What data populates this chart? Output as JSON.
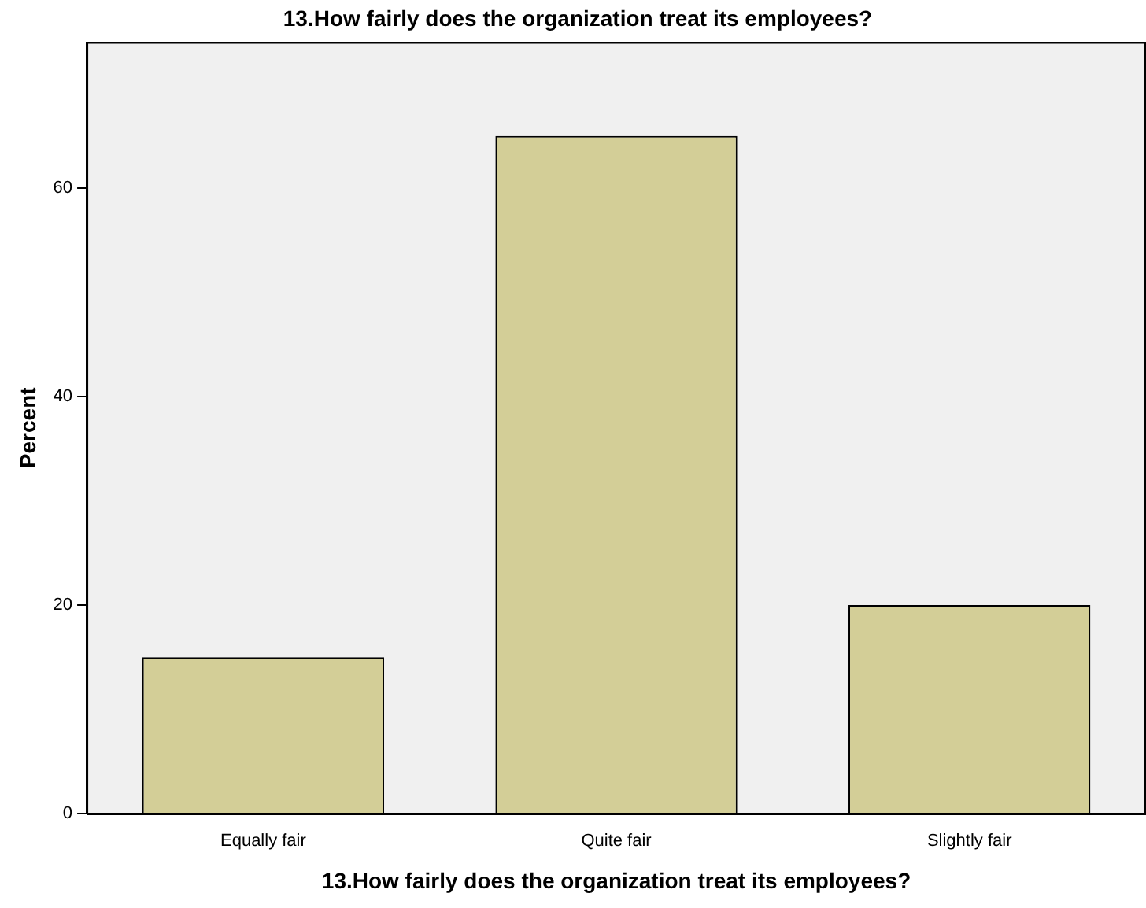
{
  "chart_data": {
    "type": "bar",
    "title": "13.How fairly does the organization treat its employees?",
    "xlabel": "13.How fairly does the organization treat its employees?",
    "ylabel": "Percent",
    "categories": [
      "Equally fair",
      "Quite fair",
      "Slightly fair"
    ],
    "values": [
      15,
      65,
      20
    ],
    "color": "#d3ce97",
    "ylim": [
      0,
      74
    ],
    "yticks": [
      0,
      20,
      40,
      60
    ]
  }
}
